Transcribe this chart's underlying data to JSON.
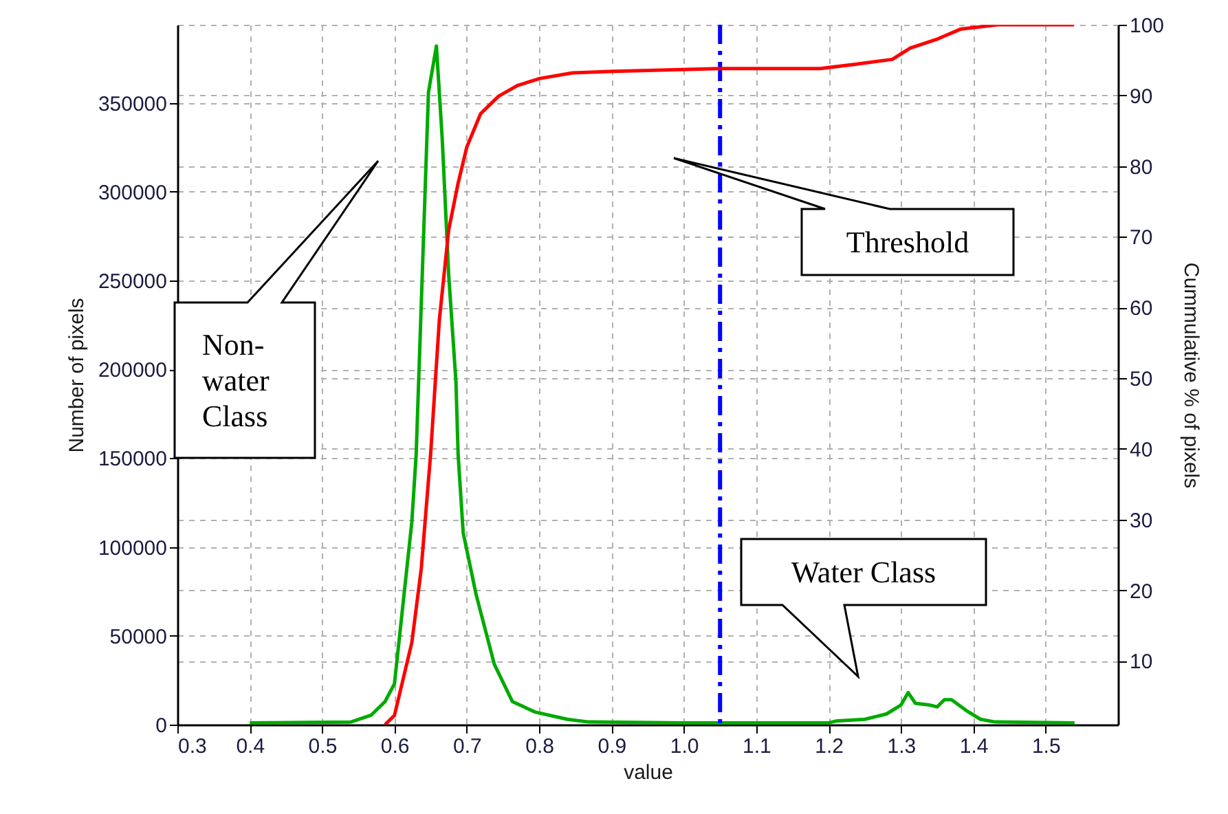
{
  "chart_data": {
    "type": "line",
    "xlabel": "value",
    "ylabel": "Number of pixels",
    "y2label": "Cummulative % of pixels",
    "xlim": [
      0.3,
      1.6
    ],
    "xticks": [
      0.3,
      0.4,
      0.5,
      0.6,
      0.7,
      0.8,
      0.9,
      {
        "value": 1.0,
        "label": "1.0"
      },
      1.1,
      1.2,
      1.3,
      1.4,
      1.5
    ],
    "ylim": [
      0,
      394000
    ],
    "yticks": [
      0,
      50000,
      100000,
      150000,
      200000,
      250000,
      300000,
      350000
    ],
    "y2lim": [
      1,
      100
    ],
    "y2ticks": [
      10,
      20,
      30,
      40,
      50,
      60,
      70,
      80,
      90,
      100
    ],
    "grid": true,
    "marker": "none",
    "line_style": "solid",
    "series": [
      {
        "color": "#00aa00",
        "x": [
          0.4,
          0.54,
          0.568,
          0.587,
          0.6,
          0.624,
          0.63,
          0.638,
          0.647,
          0.658,
          0.666,
          0.675,
          0.685,
          0.688,
          0.695,
          0.713,
          0.738,
          0.763,
          0.795,
          0.839,
          0.868,
          1.0,
          1.2,
          1.21,
          1.25,
          1.28,
          1.3,
          1.31,
          1.32,
          1.34,
          1.35,
          1.36,
          1.37,
          1.39,
          1.41,
          1.43,
          1.54
        ],
        "values": [
          1000,
          1500,
          5400,
          13000,
          23000,
          114000,
          152000,
          248000,
          356000,
          382000,
          330000,
          253000,
          193000,
          152000,
          108000,
          73000,
          34000,
          13000,
          7000,
          3000,
          1500,
          1000,
          1000,
          2000,
          3000,
          6000,
          11000,
          18000,
          12000,
          11000,
          10000,
          14000,
          14000,
          8000,
          3000,
          1500,
          1000
        ]
      },
      {
        "color": "#ff0000",
        "axis": "y2",
        "x": [
          0.587,
          0.6,
          0.624,
          0.637,
          0.65,
          0.662,
          0.675,
          0.688,
          0.7,
          0.719,
          0.744,
          0.77,
          0.801,
          0.846,
          0.903,
          1.048,
          1.188,
          1.237,
          1.288,
          1.313,
          1.351,
          1.383,
          1.434,
          1.539
        ],
        "values": [
          1,
          2.3,
          12.6,
          23,
          39.3,
          58.2,
          71,
          77.6,
          82.7,
          87.4,
          89.9,
          91.4,
          92.4,
          93.2,
          93.4,
          93.8,
          93.8,
          94.4,
          95.1,
          96.7,
          98,
          99.4,
          100,
          100
        ]
      }
    ],
    "ref_lines": [
      {
        "axis": "x",
        "value": 1.05,
        "color": "#0000ff",
        "line_style": "dashed"
      }
    ],
    "annotations": [
      "Non-water Class",
      "Threshold",
      "Water Class"
    ]
  }
}
